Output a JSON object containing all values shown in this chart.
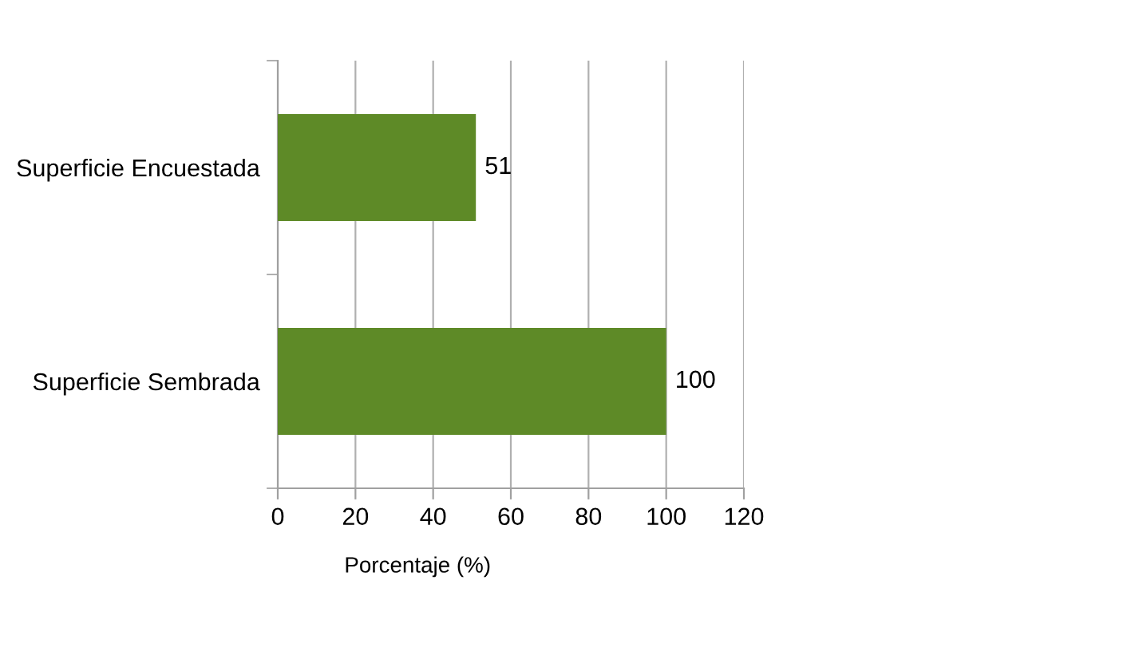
{
  "chart_data": {
    "type": "bar",
    "orientation": "horizontal",
    "xlabel": "Porcentaje (%)",
    "categories": [
      "Superficie Encuestada",
      "Superficie Sembrada"
    ],
    "values": [
      51,
      100
    ],
    "color": "#5e8a27",
    "xlim": [
      0,
      120
    ],
    "xticks": [
      0,
      20,
      40,
      60,
      80,
      100,
      120
    ],
    "grid": "x",
    "data_labels": true
  }
}
